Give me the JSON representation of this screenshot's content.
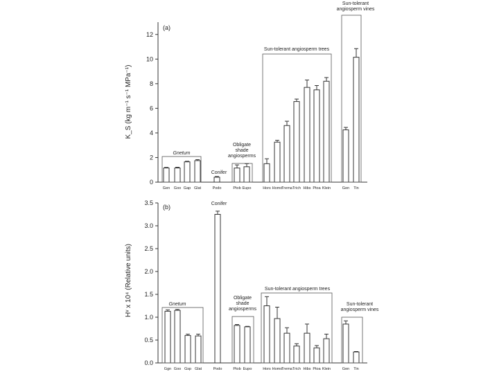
{
  "chart_data": [
    {
      "type": "bar",
      "panel_label": "(a)",
      "ylabel": "K_S (kg m⁻¹ s⁻¹ MPa⁻¹)",
      "ylim": [
        0,
        13
      ],
      "yticks": [
        0,
        2,
        4,
        6,
        8,
        10,
        12
      ],
      "categories": [
        "Gen",
        "Goo",
        "Gap",
        "Glat",
        "Podo",
        "Ptob",
        "Eupo",
        "Hors",
        "Homo",
        "Trema",
        "Trich",
        "Hibs",
        "Ptoa",
        "Klein",
        "Gen",
        "Tin"
      ],
      "values": [
        1.15,
        1.15,
        1.65,
        1.75,
        0.4,
        1.15,
        1.25,
        1.5,
        3.25,
        4.6,
        6.55,
        7.7,
        7.5,
        8.2,
        4.25,
        10.15
      ],
      "errors": [
        0.05,
        0.06,
        0.05,
        0.08,
        0.06,
        0.25,
        0.25,
        0.4,
        0.15,
        0.35,
        0.2,
        0.6,
        0.35,
        0.3,
        0.2,
        0.7
      ],
      "groups": [
        {
          "label": "Gnetum",
          "start": 0,
          "end": 3
        },
        {
          "label": "Conifer",
          "start": 4,
          "end": 4
        },
        {
          "label": "Obligate shade angiosperms",
          "start": 5,
          "end": 6
        },
        {
          "label": "Sun-tolerant angiosperm trees",
          "start": 7,
          "end": 13
        },
        {
          "label": "Sun-tolerant angiosperm vines",
          "start": 14,
          "end": 15
        }
      ]
    },
    {
      "type": "bar",
      "panel_label": "(b)",
      "ylabel": "Hᵛ x 10⁴ (Relative units)",
      "ylim": [
        0,
        3.5
      ],
      "yticks": [
        "0.0",
        "0.5",
        "1.0",
        "1.5",
        "2.0",
        "2.5",
        "3.0",
        "3.5"
      ],
      "categories": [
        "Ggn",
        "Goo",
        "Gsp",
        "Glat",
        "Podo",
        "Ptob",
        "Eupo",
        "Hors",
        "Homo",
        "Trema",
        "Trich",
        "Hibs",
        "Ptoa",
        "Klein",
        "Gen",
        "Tin"
      ],
      "values": [
        1.13,
        1.15,
        0.6,
        0.59,
        3.25,
        0.82,
        0.79,
        1.25,
        0.97,
        0.65,
        0.37,
        0.65,
        0.33,
        0.53,
        0.85,
        0.24
      ],
      "errors": [
        0.03,
        0.02,
        0.03,
        0.04,
        0.07,
        0.02,
        0.01,
        0.2,
        0.25,
        0.12,
        0.05,
        0.2,
        0.05,
        0.1,
        0.07,
        0.01
      ],
      "groups": [
        {
          "label": "Gnetum",
          "start": 0,
          "end": 3
        },
        {
          "label": "Conifer",
          "start": 4,
          "end": 4
        },
        {
          "label": "Obligate shade angiosperms",
          "start": 5,
          "end": 6
        },
        {
          "label": "Sun-tolerant angiosperm trees",
          "start": 7,
          "end": 13
        },
        {
          "label": "Sun-tolerant angiosperm vines",
          "start": 14,
          "end": 15
        }
      ]
    }
  ]
}
